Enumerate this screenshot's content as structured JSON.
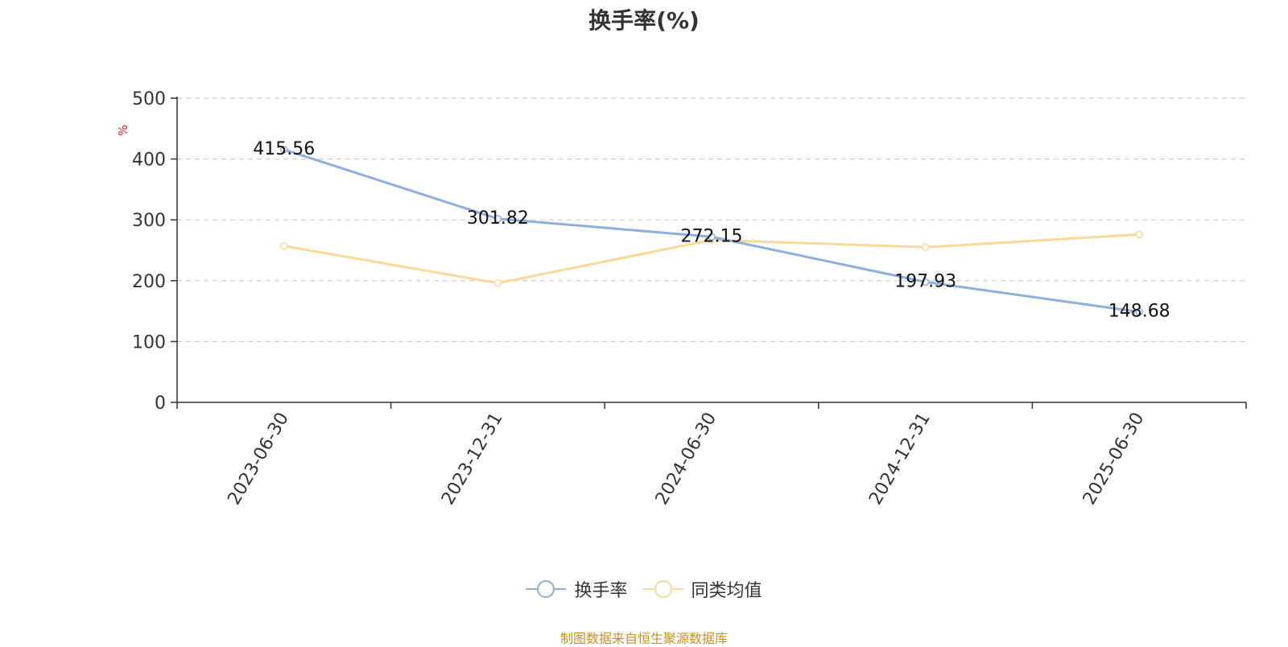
{
  "chart_data": {
    "type": "line",
    "title": "换手率(%)",
    "ylabel": "%",
    "categories": [
      "2023-06-30",
      "2023-12-31",
      "2024-06-30",
      "2024-12-31",
      "2025-06-30"
    ],
    "series": [
      {
        "name": "换手率",
        "values": [
          415.56,
          301.82,
          272.15,
          197.93,
          148.68
        ],
        "color": "#8eaedb",
        "labels": [
          "415.56",
          "301.82",
          "272.15",
          "197.93",
          "148.68"
        ]
      },
      {
        "name": "同类均值",
        "values": [
          257,
          196,
          267,
          255,
          276
        ],
        "color": "#fad896"
      }
    ],
    "ylim": [
      0,
      500
    ],
    "yticks": [
      "0",
      "100",
      "200",
      "300",
      "400",
      "500"
    ],
    "grid": true,
    "legend_position": "bottom"
  },
  "source_note": "制图数据来自恒生聚源数据库"
}
